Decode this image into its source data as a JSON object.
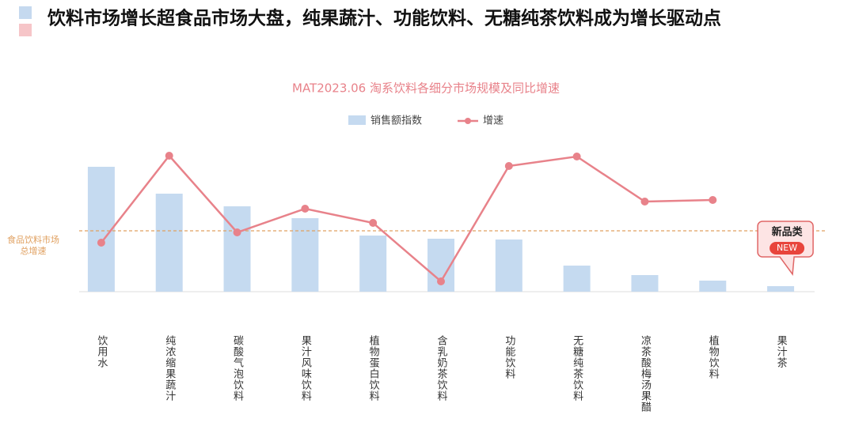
{
  "chart_data": {
    "type": "bar_line",
    "headline": "饮料市场增长超食品市场大盘，纯果蔬汁、功能饮料、无糖纯茶饮料成为增长驱动点",
    "title": "MAT2023.06  淘系饮料各细分市场规模及同比增速",
    "categories": [
      "饮用水",
      "纯浓缩果蔬汁",
      "碳酸气泡饮料",
      "果汁风味饮料",
      "植物蛋白饮料",
      "含乳奶茶饮料",
      "功能饮料",
      "无糖纯茶饮料",
      "凉茶酸梅汤果醋",
      "植物饮料",
      "果汁茶"
    ],
    "series": [
      {
        "name": "销售额指数",
        "color": "#c5daf0",
        "values": [
          79,
          62,
          54,
          46.5,
          35.5,
          33.5,
          33,
          16.5,
          10.5,
          7,
          3.5
        ]
      },
      {
        "name": "增速",
        "color": "#e8828a",
        "axis": "y2",
        "values": [
          31,
          86,
          37.5,
          52.5,
          43.5,
          6.5,
          79.5,
          85.5,
          57,
          58,
          null
        ]
      }
    ],
    "ylim": [
      0,
      100
    ],
    "y2lim": [
      0,
      100
    ],
    "reference_line": {
      "value": 38.5,
      "label_lines": [
        "食品饮料市场",
        "总增速"
      ],
      "color": "#e0a060"
    },
    "annotation": {
      "text": "新品类",
      "badge": "NEW",
      "category_index": 10
    }
  }
}
